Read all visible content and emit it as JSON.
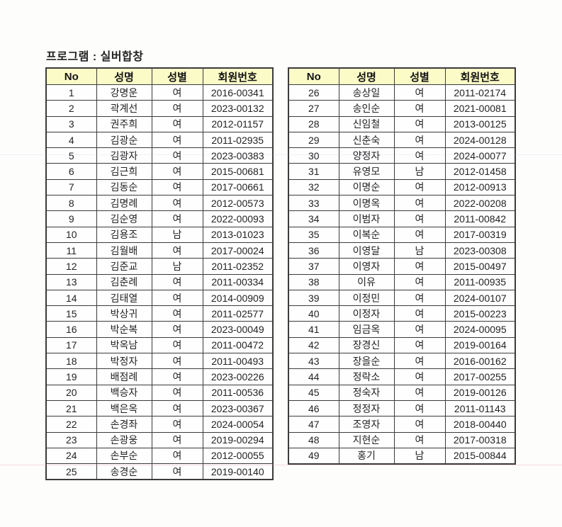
{
  "page": {
    "title": "프로그램 : 실버합창"
  },
  "colors": {
    "header_bg": "#FBFBC8",
    "table_border": "#3B3B3B",
    "ink": "#1B1B1B",
    "paper": "#FDFDFC"
  },
  "table": {
    "headers": [
      "No",
      "성명",
      "성별",
      "회원번호"
    ],
    "left_rows": [
      [
        "1",
        "강명운",
        "여",
        "2016-00341"
      ],
      [
        "2",
        "곽계선",
        "여",
        "2023-00132"
      ],
      [
        "3",
        "권주희",
        "여",
        "2012-01157"
      ],
      [
        "4",
        "김광순",
        "여",
        "2011-02935"
      ],
      [
        "5",
        "김광자",
        "여",
        "2023-00383"
      ],
      [
        "6",
        "김근희",
        "여",
        "2015-00681"
      ],
      [
        "7",
        "김동순",
        "여",
        "2017-00661"
      ],
      [
        "8",
        "김명례",
        "여",
        "2012-00573"
      ],
      [
        "9",
        "김순영",
        "여",
        "2022-00093"
      ],
      [
        "10",
        "김용조",
        "남",
        "2013-01023"
      ],
      [
        "11",
        "김월배",
        "여",
        "2017-00024"
      ],
      [
        "12",
        "김준교",
        "남",
        "2011-02352"
      ],
      [
        "13",
        "김춘례",
        "여",
        "2011-00334"
      ],
      [
        "14",
        "김태열",
        "여",
        "2014-00909"
      ],
      [
        "15",
        "박상귀",
        "여",
        "2011-02577"
      ],
      [
        "16",
        "박순복",
        "여",
        "2023-00049"
      ],
      [
        "17",
        "박옥남",
        "여",
        "2011-00472"
      ],
      [
        "18",
        "박정자",
        "여",
        "2011-00493"
      ],
      [
        "19",
        "배점례",
        "여",
        "2023-00226"
      ],
      [
        "20",
        "백승자",
        "여",
        "2011-00536"
      ],
      [
        "21",
        "백은옥",
        "여",
        "2023-00367"
      ],
      [
        "22",
        "손경좌",
        "여",
        "2024-00054"
      ],
      [
        "23",
        "손광웅",
        "여",
        "2019-00294"
      ],
      [
        "24",
        "손부순",
        "여",
        "2012-00055"
      ],
      [
        "25",
        "송경순",
        "여",
        "2019-00140"
      ]
    ],
    "right_rows": [
      [
        "26",
        "송상일",
        "여",
        "2011-02174"
      ],
      [
        "27",
        "송인순",
        "여",
        "2021-00081"
      ],
      [
        "28",
        "신임철",
        "여",
        "2013-00125"
      ],
      [
        "29",
        "신춘숙",
        "여",
        "2024-00128"
      ],
      [
        "30",
        "양정자",
        "여",
        "2024-00077"
      ],
      [
        "31",
        "유영모",
        "남",
        "2012-01458"
      ],
      [
        "32",
        "이명순",
        "여",
        "2012-00913"
      ],
      [
        "33",
        "이명옥",
        "여",
        "2022-00208"
      ],
      [
        "34",
        "이범자",
        "여",
        "2011-00842"
      ],
      [
        "35",
        "이복순",
        "여",
        "2017-00319"
      ],
      [
        "36",
        "이영달",
        "남",
        "2023-00308"
      ],
      [
        "37",
        "이영자",
        "여",
        "2015-00497"
      ],
      [
        "38",
        "이유",
        "여",
        "2011-00935"
      ],
      [
        "39",
        "이정민",
        "여",
        "2024-00107"
      ],
      [
        "40",
        "이정자",
        "여",
        "2015-00223"
      ],
      [
        "41",
        "임금옥",
        "여",
        "2024-00095"
      ],
      [
        "42",
        "장경신",
        "여",
        "2019-00164"
      ],
      [
        "43",
        "장을순",
        "여",
        "2016-00162"
      ],
      [
        "44",
        "정락소",
        "여",
        "2017-00255"
      ],
      [
        "45",
        "정숙자",
        "여",
        "2019-00126"
      ],
      [
        "46",
        "정정자",
        "여",
        "2011-01143"
      ],
      [
        "47",
        "조영자",
        "여",
        "2018-00440"
      ],
      [
        "48",
        "지현순",
        "여",
        "2017-00318"
      ],
      [
        "49",
        "홍기",
        "남",
        "2015-00844"
      ]
    ]
  }
}
